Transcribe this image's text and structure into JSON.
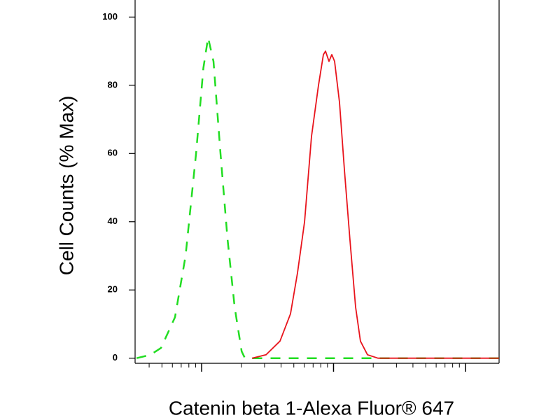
{
  "chart_data": {
    "type": "line",
    "xlabel": "Catenin beta 1-Alexa Fluor® 647",
    "ylabel": "Cell Counts (% Max)",
    "xscale": "log",
    "xlim": [
      3.13,
      1800
    ],
    "xticks": [
      10,
      100,
      1000
    ],
    "ylim": [
      -1.5,
      105
    ],
    "yticks": [
      0,
      20,
      40,
      60,
      80,
      100
    ],
    "series": [
      {
        "color": "#22dd22",
        "line_style": "dashed",
        "x": [
          3.21,
          4.1,
          4.92,
          6.28,
          7.55,
          9.07,
          10.3,
          11.2,
          12.3,
          13.9,
          15.7,
          17.8,
          20.1,
          21.3,
          39.3,
          133,
          452,
          1800
        ],
        "values": [
          0,
          1,
          3,
          12,
          30,
          60,
          85,
          94,
          87,
          60,
          35,
          15,
          2,
          0,
          0,
          0,
          0,
          0
        ]
      },
      {
        "color": "#e8141c",
        "line_style": "solid",
        "x": [
          24.1,
          30.8,
          39.3,
          47.2,
          53.3,
          60.3,
          68.1,
          76.9,
          83.8,
          86.9,
          92.4,
          97,
          101.9,
          111,
          121,
          133,
          147,
          160,
          181,
          217,
          1800
        ],
        "values": [
          0,
          1,
          5,
          13,
          25,
          40,
          65,
          80,
          89,
          90,
          87,
          89,
          87,
          75,
          55,
          35,
          15,
          5,
          1,
          0,
          0
        ]
      }
    ]
  }
}
